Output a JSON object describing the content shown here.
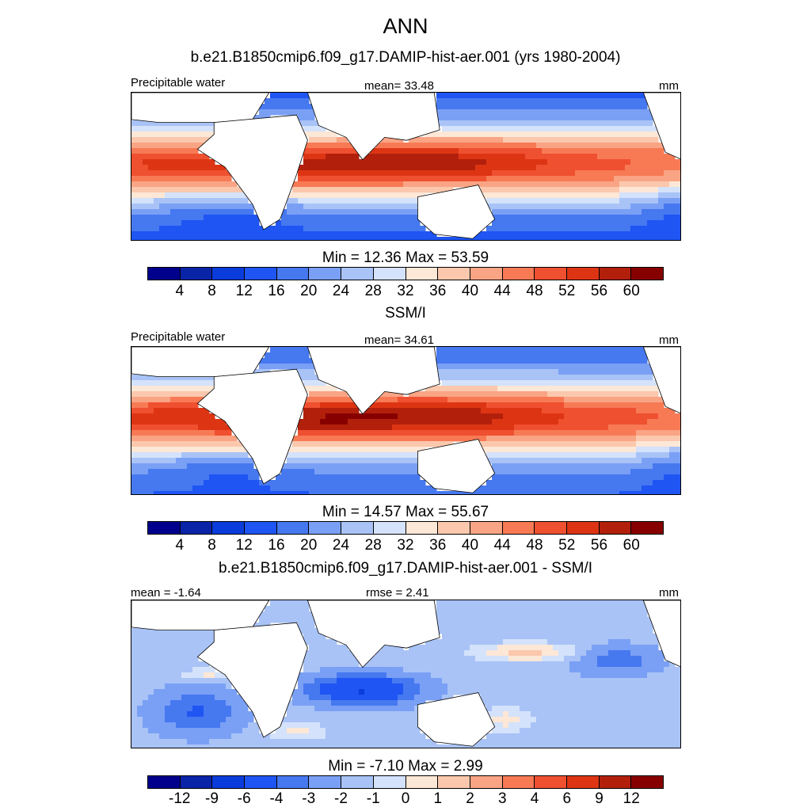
{
  "title": "ANN",
  "panels": [
    {
      "subtitle": "b.e21.B1850cmip6.f09_g17.DAMIP-hist-aer.001 (yrs 1980-2004)",
      "left_label": "Precipitable water",
      "center_label": "mean=  33.48",
      "units": "mm",
      "minmax": "Min =  12.36 Max =  53.59",
      "field": "model"
    },
    {
      "subtitle": "SSM/I",
      "left_label": "Precipitable water",
      "center_label": "mean=  34.61",
      "units": "mm",
      "minmax": "Min =  14.57 Max =  55.67",
      "field": "obs"
    },
    {
      "subtitle": "b.e21.B1850cmip6.f09_g17.DAMIP-hist-aer.001 - SSM/I",
      "left_label": "mean =  -1.64",
      "center_label": "rmse =   2.41",
      "units": "mm",
      "minmax": "Min =  -7.10 Max =   2.99",
      "field": "diff"
    }
  ],
  "colorbars": {
    "abs": {
      "colors": [
        "#00008c",
        "#0a24a8",
        "#0a3cdc",
        "#1f55f2",
        "#4678f0",
        "#7aa0f5",
        "#a9c3f7",
        "#d4e2fb",
        "#fde7d6",
        "#fbc8ad",
        "#f9a484",
        "#f77a55",
        "#ef5030",
        "#dd3514",
        "#b2200c",
        "#870000"
      ],
      "ticks": [
        "4",
        "8",
        "12",
        "16",
        "20",
        "24",
        "28",
        "32",
        "36",
        "40",
        "44",
        "48",
        "52",
        "56",
        "60"
      ]
    },
    "diff": {
      "colors": [
        "#00008c",
        "#0a24a8",
        "#0a3cdc",
        "#1f55f2",
        "#4678f0",
        "#7aa0f5",
        "#a9c3f7",
        "#d4e2fb",
        "#fde7d6",
        "#fbc8ad",
        "#f9a484",
        "#f77a55",
        "#ef5030",
        "#dd3514",
        "#b2200c",
        "#870000"
      ],
      "ticks": [
        "-12",
        "-9",
        "-6",
        "-4",
        "-3",
        "-2",
        "-1",
        "0",
        "1",
        "2",
        "3",
        "4",
        "6",
        "9",
        "12"
      ]
    }
  }
}
